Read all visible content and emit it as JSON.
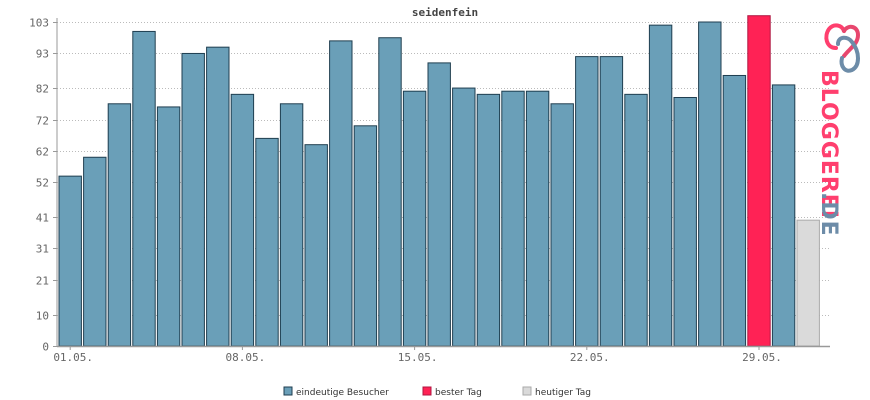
{
  "chart_data": {
    "type": "bar",
    "title": "seidenfein",
    "xlabel": "",
    "ylabel": "",
    "ylim": [
      0,
      103
    ],
    "yticks": [
      0,
      10,
      21,
      31,
      41,
      52,
      62,
      72,
      82,
      93,
      103
    ],
    "xtick_labels": [
      {
        "label": "01.05.",
        "index": 0
      },
      {
        "label": "08.05.",
        "index": 7
      },
      {
        "label": "15.05.",
        "index": 14
      },
      {
        "label": "22.05.",
        "index": 21
      },
      {
        "label": "29.05.",
        "index": 28
      }
    ],
    "values": [
      54,
      60,
      77,
      100,
      76,
      93,
      95,
      80,
      66,
      77,
      64,
      97,
      70,
      98,
      81,
      90,
      82,
      80,
      81,
      81,
      77,
      92,
      92,
      80,
      102,
      79,
      103,
      86,
      105,
      83,
      40
    ],
    "bar_types": [
      "regular",
      "regular",
      "regular",
      "regular",
      "regular",
      "regular",
      "regular",
      "regular",
      "regular",
      "regular",
      "regular",
      "regular",
      "regular",
      "regular",
      "regular",
      "regular",
      "regular",
      "regular",
      "regular",
      "regular",
      "regular",
      "regular",
      "regular",
      "regular",
      "regular",
      "regular",
      "regular",
      "regular",
      "best",
      "regular",
      "today"
    ],
    "grid": true,
    "legend_position": "bottom-center",
    "colors": {
      "regular": "#6a9fb8",
      "best": "#ff2255",
      "today": "#dadada",
      "bar_border": "#1f3e4f",
      "axis": "#999999",
      "grid": "#bbbbbb"
    },
    "legend": [
      {
        "key": "regular",
        "label": "eindeutige Besucher"
      },
      {
        "key": "best",
        "label": "bester Tag"
      },
      {
        "key": "today",
        "label": "heutiger Tag"
      }
    ]
  },
  "brand": {
    "logo_icon": "bloggerei-heart-logo",
    "name": "BLOGGEREI",
    "suffix": ".DE",
    "color_main": "#ff3f6e",
    "color_suffix": "#6d8ca8"
  }
}
